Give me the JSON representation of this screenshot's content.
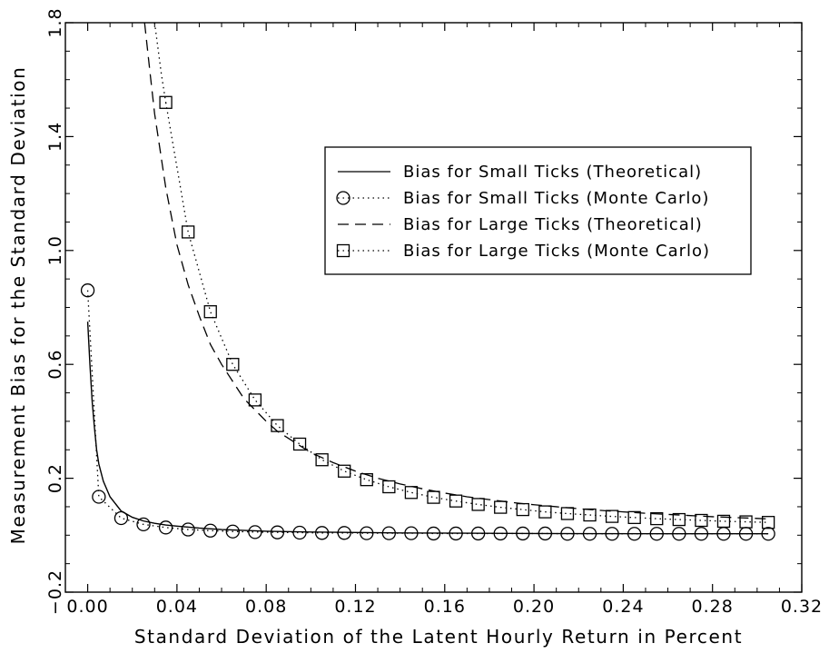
{
  "chart_data": {
    "type": "line",
    "title": "",
    "xlabel": "Standard Deviation of the Latent Hourly Return in Percent",
    "ylabel": "Measurement Bias for the Standard Deviation",
    "xlim": [
      -0.01,
      0.32
    ],
    "ylim": [
      -0.2,
      1.8
    ],
    "x_ticks": [
      0.0,
      0.04,
      0.08,
      0.12,
      0.16,
      0.2,
      0.24,
      0.28,
      0.32
    ],
    "x_tick_labels": [
      "0.00",
      "0.04",
      "0.08",
      "0.12",
      "0.16",
      "0.20",
      "0.24",
      "0.28",
      "0.32"
    ],
    "y_ticks": [
      -0.2,
      0.2,
      0.6,
      1.0,
      1.4,
      1.8
    ],
    "y_tick_labels": [
      "−0.2",
      "0.2",
      "0.6",
      "1.0",
      "1.4",
      "1.8"
    ],
    "grid": false,
    "legend_position": "upper-right",
    "series": [
      {
        "name": "Bias for Small Ticks (Theoretical)",
        "line_style": "solid",
        "marker": "none",
        "x": [
          0.0,
          0.001,
          0.002,
          0.003,
          0.004,
          0.005,
          0.007,
          0.01,
          0.015,
          0.02,
          0.025,
          0.03,
          0.035,
          0.04,
          0.05,
          0.06,
          0.08,
          0.1,
          0.14,
          0.2,
          0.26,
          0.305
        ],
        "y": [
          0.75,
          0.6,
          0.47,
          0.38,
          0.3,
          0.25,
          0.19,
          0.135,
          0.085,
          0.063,
          0.05,
          0.042,
          0.036,
          0.032,
          0.025,
          0.02,
          0.014,
          0.011,
          0.008,
          0.006,
          0.005,
          0.005
        ]
      },
      {
        "name": "Bias for Small Ticks (Monte Carlo)",
        "line_style": "dotted",
        "marker": "circle",
        "x": [
          0.0,
          0.005,
          0.015,
          0.025,
          0.035,
          0.045,
          0.055,
          0.065,
          0.075,
          0.085,
          0.095,
          0.105,
          0.115,
          0.125,
          0.135,
          0.145,
          0.155,
          0.165,
          0.175,
          0.185,
          0.195,
          0.205,
          0.215,
          0.225,
          0.235,
          0.245,
          0.255,
          0.265,
          0.275,
          0.285,
          0.295,
          0.305
        ],
        "y": [
          0.86,
          0.135,
          0.06,
          0.038,
          0.027,
          0.02,
          0.016,
          0.013,
          0.011,
          0.01,
          0.009,
          0.008,
          0.008,
          0.007,
          0.007,
          0.007,
          0.006,
          0.006,
          0.006,
          0.006,
          0.006,
          0.006,
          0.005,
          0.005,
          0.005,
          0.005,
          0.005,
          0.005,
          0.005,
          0.005,
          0.005,
          0.005
        ]
      },
      {
        "name": "Bias for Large Ticks (Theoretical)",
        "line_style": "dashed",
        "marker": "none",
        "x": [
          0.0255,
          0.028,
          0.03,
          0.035,
          0.04,
          0.045,
          0.05,
          0.055,
          0.06,
          0.065,
          0.07,
          0.075,
          0.08,
          0.085,
          0.09,
          0.095,
          0.1,
          0.11,
          0.12,
          0.13,
          0.14,
          0.15,
          0.16,
          0.17,
          0.18,
          0.19,
          0.2,
          0.21,
          0.22,
          0.23,
          0.24,
          0.25,
          0.26,
          0.27,
          0.28,
          0.29,
          0.3,
          0.305
        ],
        "y": [
          1.8,
          1.62,
          1.48,
          1.22,
          1.02,
          0.88,
          0.77,
          0.67,
          0.6,
          0.54,
          0.48,
          0.44,
          0.4,
          0.365,
          0.34,
          0.315,
          0.29,
          0.255,
          0.225,
          0.2,
          0.18,
          0.163,
          0.148,
          0.135,
          0.125,
          0.115,
          0.107,
          0.1,
          0.093,
          0.087,
          0.082,
          0.077,
          0.073,
          0.069,
          0.065,
          0.062,
          0.059,
          0.057
        ]
      },
      {
        "name": "Bias for Large Ticks (Monte Carlo)",
        "line_style": "dotted",
        "marker": "square",
        "x": [
          0.035,
          0.045,
          0.055,
          0.065,
          0.075,
          0.085,
          0.095,
          0.105,
          0.115,
          0.125,
          0.135,
          0.145,
          0.155,
          0.165,
          0.175,
          0.185,
          0.195,
          0.205,
          0.215,
          0.225,
          0.235,
          0.245,
          0.255,
          0.265,
          0.275,
          0.285,
          0.295,
          0.305
        ],
        "y": [
          1.52,
          1.065,
          0.785,
          0.6,
          0.475,
          0.385,
          0.32,
          0.265,
          0.225,
          0.195,
          0.17,
          0.15,
          0.133,
          0.12,
          0.108,
          0.098,
          0.09,
          0.082,
          0.076,
          0.071,
          0.066,
          0.062,
          0.058,
          0.055,
          0.052,
          0.049,
          0.047,
          0.045
        ]
      }
    ],
    "unmarked_dotted_extensions": [
      {
        "series": "Bias for Large Ticks (Monte Carlo)",
        "x": [
          0.03,
          0.031,
          0.032,
          0.033,
          0.034,
          0.035
        ],
        "y": [
          1.8,
          1.74,
          1.68,
          1.62,
          1.57,
          1.52
        ]
      }
    ]
  }
}
